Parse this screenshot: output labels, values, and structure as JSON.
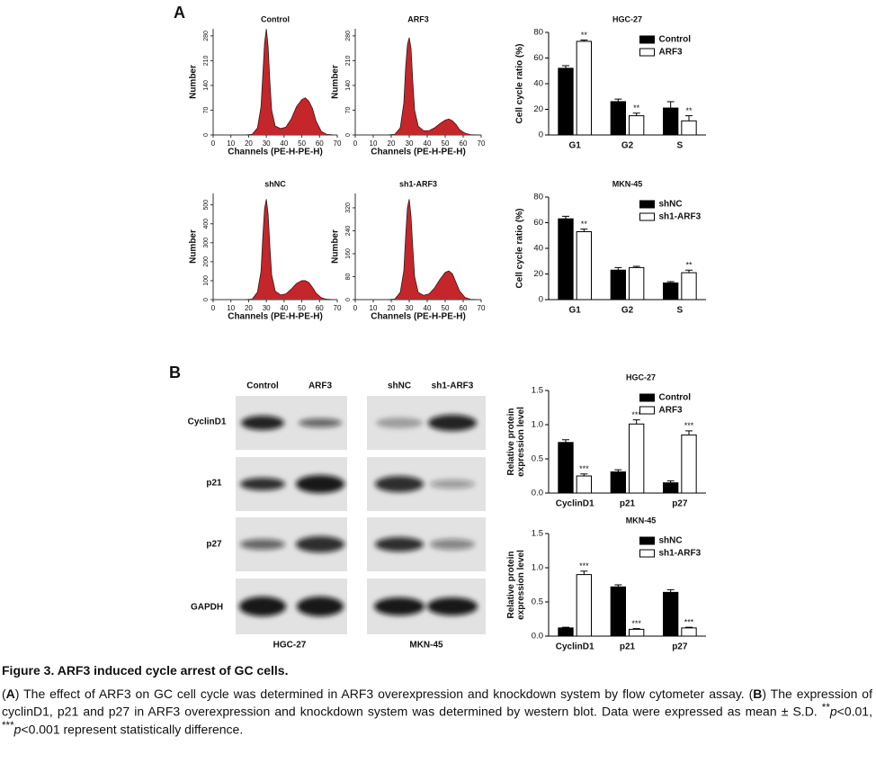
{
  "panels": [
    "A",
    "B"
  ],
  "chart_data": [
    {
      "type": "area",
      "title": "Control",
      "xlabel": "Channels (PE-H-PE-H)",
      "ylabel": "Number",
      "x": [
        18,
        22,
        25,
        27,
        28,
        29,
        30,
        31,
        32,
        33,
        35,
        38,
        41,
        44,
        47,
        50,
        52,
        54,
        56,
        58,
        61,
        64,
        68
      ],
      "values": [
        0,
        2,
        20,
        80,
        170,
        260,
        300,
        250,
        150,
        70,
        25,
        18,
        22,
        45,
        80,
        100,
        105,
        95,
        75,
        40,
        10,
        2,
        0
      ],
      "color": "#c4262b",
      "xlim": [
        0,
        70
      ],
      "xticks": [
        0,
        10,
        20,
        30,
        40,
        50,
        60,
        70
      ],
      "ylim": [
        0,
        300
      ],
      "yticks": [
        0,
        70,
        140,
        210,
        280
      ]
    },
    {
      "type": "area",
      "title": "ARF3",
      "xlabel": "Channels (PE-H-PE-H)",
      "ylabel": "Number",
      "x": [
        18,
        22,
        25,
        27,
        28,
        29,
        30,
        31,
        32,
        33,
        35,
        38,
        41,
        44,
        47,
        50,
        52,
        54,
        56,
        58,
        61,
        64,
        68
      ],
      "values": [
        0,
        2,
        20,
        90,
        190,
        255,
        275,
        245,
        150,
        70,
        25,
        12,
        12,
        20,
        32,
        42,
        45,
        40,
        30,
        15,
        5,
        1,
        0
      ],
      "color": "#c4262b",
      "xlim": [
        0,
        70
      ],
      "xticks": [
        0,
        10,
        20,
        30,
        40,
        50,
        60,
        70
      ],
      "ylim": [
        0,
        300
      ],
      "yticks": [
        0,
        70,
        140,
        210,
        280
      ]
    },
    {
      "type": "area",
      "title": "shNC",
      "xlabel": "Channels (PE-H-PE-H)",
      "ylabel": "Number",
      "x": [
        18,
        22,
        25,
        27,
        28,
        29,
        30,
        31,
        32,
        33,
        35,
        38,
        41,
        44,
        47,
        50,
        52,
        54,
        56,
        58,
        61,
        64,
        68
      ],
      "values": [
        0,
        3,
        40,
        150,
        330,
        480,
        530,
        450,
        280,
        130,
        45,
        25,
        30,
        55,
        85,
        100,
        100,
        90,
        65,
        35,
        10,
        2,
        0
      ],
      "color": "#c4262b",
      "xlim": [
        0,
        70
      ],
      "xticks": [
        0,
        10,
        20,
        30,
        40,
        50,
        60,
        70
      ],
      "ylim": [
        0,
        560
      ],
      "yticks": [
        0,
        100,
        200,
        300,
        400,
        500
      ]
    },
    {
      "type": "area",
      "title": "sh1-ARF3",
      "xlabel": "Channels (PE-H-PE-H)",
      "ylabel": "Number",
      "x": [
        18,
        22,
        25,
        27,
        28,
        29,
        30,
        31,
        32,
        33,
        35,
        38,
        41,
        44,
        47,
        50,
        52,
        54,
        56,
        58,
        61,
        64,
        68
      ],
      "values": [
        0,
        2,
        25,
        100,
        220,
        320,
        350,
        290,
        180,
        80,
        25,
        15,
        20,
        40,
        70,
        95,
        100,
        90,
        60,
        30,
        8,
        1,
        0
      ],
      "color": "#c4262b",
      "xlim": [
        0,
        70
      ],
      "xticks": [
        0,
        10,
        20,
        30,
        40,
        50,
        60,
        70
      ],
      "ylim": [
        0,
        370
      ],
      "yticks": [
        0,
        80,
        160,
        240,
        320
      ]
    },
    {
      "type": "bar",
      "title": "HGC-27",
      "ylabel": "Cell cycle ratio (%)",
      "categories": [
        "G1",
        "G2",
        "S"
      ],
      "series": [
        {
          "name": "Control",
          "color": "#000000",
          "values": [
            52,
            26,
            21
          ],
          "errors": [
            2,
            2,
            5
          ]
        },
        {
          "name": "ARF3",
          "color": "#ffffff",
          "values": [
            73,
            15,
            11
          ],
          "errors": [
            1,
            2,
            4
          ],
          "significance": [
            "**",
            "**",
            "**"
          ]
        }
      ],
      "ylim": [
        0,
        80
      ],
      "yticks": [
        0,
        20,
        40,
        60,
        80
      ],
      "legend": "upper right"
    },
    {
      "type": "bar",
      "title": "MKN-45",
      "ylabel": "Cell cycle ratio (%)",
      "categories": [
        "G1",
        "G2",
        "S"
      ],
      "series": [
        {
          "name": "shNC",
          "color": "#000000",
          "values": [
            63,
            23,
            13
          ],
          "errors": [
            2,
            2,
            1
          ]
        },
        {
          "name": "sh1-ARF3",
          "color": "#ffffff",
          "values": [
            53,
            25,
            21
          ],
          "errors": [
            2,
            1,
            2
          ],
          "significance": [
            "**",
            null,
            "**"
          ]
        }
      ],
      "ylim": [
        0,
        80
      ],
      "yticks": [
        0,
        20,
        40,
        60,
        80
      ],
      "legend": "upper right"
    },
    {
      "type": "bar",
      "title": "HGC-27",
      "ylabel": [
        "Relative protein",
        "expression level"
      ],
      "categories": [
        "CyclinD1",
        "p21",
        "p27"
      ],
      "series": [
        {
          "name": "Control",
          "color": "#000000",
          "values": [
            0.74,
            0.31,
            0.15
          ],
          "errors": [
            0.04,
            0.03,
            0.03
          ]
        },
        {
          "name": "ARF3",
          "color": "#ffffff",
          "values": [
            0.25,
            1.01,
            0.85
          ],
          "errors": [
            0.03,
            0.06,
            0.06
          ],
          "significance": [
            "***",
            "***",
            "***"
          ]
        }
      ],
      "ylim": [
        0,
        1.5
      ],
      "yticks": [
        {
          "value": 0,
          "label": "0.0"
        },
        {
          "value": 0.5,
          "label": "0.5"
        },
        {
          "value": 1,
          "label": "1.0"
        },
        {
          "value": 1.5,
          "label": "1.5"
        }
      ],
      "legend": "upper right"
    },
    {
      "type": "bar",
      "title": "MKN-45",
      "ylabel": [
        "Relative protein",
        "expression level"
      ],
      "categories": [
        "CyclinD1",
        "p21",
        "p27"
      ],
      "series": [
        {
          "name": "shNC",
          "color": "#000000",
          "values": [
            0.12,
            0.72,
            0.64
          ],
          "errors": [
            0.01,
            0.03,
            0.04
          ]
        },
        {
          "name": "sh1-ARF3",
          "color": "#ffffff",
          "values": [
            0.9,
            0.1,
            0.12
          ],
          "errors": [
            0.05,
            0.01,
            0.01
          ],
          "significance": [
            "***",
            "***",
            "***"
          ]
        }
      ],
      "ylim": [
        0,
        1.5
      ],
      "yticks": [
        {
          "value": 0,
          "label": "0.0"
        },
        {
          "value": 0.5,
          "label": "0.5"
        },
        {
          "value": 1,
          "label": "1.0"
        },
        {
          "value": 1.5,
          "label": "1.5"
        }
      ],
      "legend": "upper right"
    }
  ],
  "blots": {
    "columns": [
      "Control",
      "ARF3",
      "shNC",
      "sh1-ARF3"
    ],
    "rows": [
      "CyclinD1",
      "p21",
      "p27",
      "GAPDH"
    ],
    "cell_lines": [
      "HGC-27",
      "MKN-45"
    ]
  },
  "caption": {
    "title": "Figure 3. ARF3 induced cycle arrest of GC cells.",
    "body": [
      "(",
      "A",
      ") The effect of ARF3 on GC cell cycle was determined in ARF3 overexpression and knockdown system by flow cytometer assay. (",
      "B",
      ") The expression of cyclinD1, p21 and p27 in ARF3 overexpression and knockdown system was determined by western blot. Data were expressed as mean ± S.D. ",
      "**",
      "p",
      "<0.01, ",
      "***",
      "p",
      "<0.001 represent statistically difference."
    ]
  }
}
